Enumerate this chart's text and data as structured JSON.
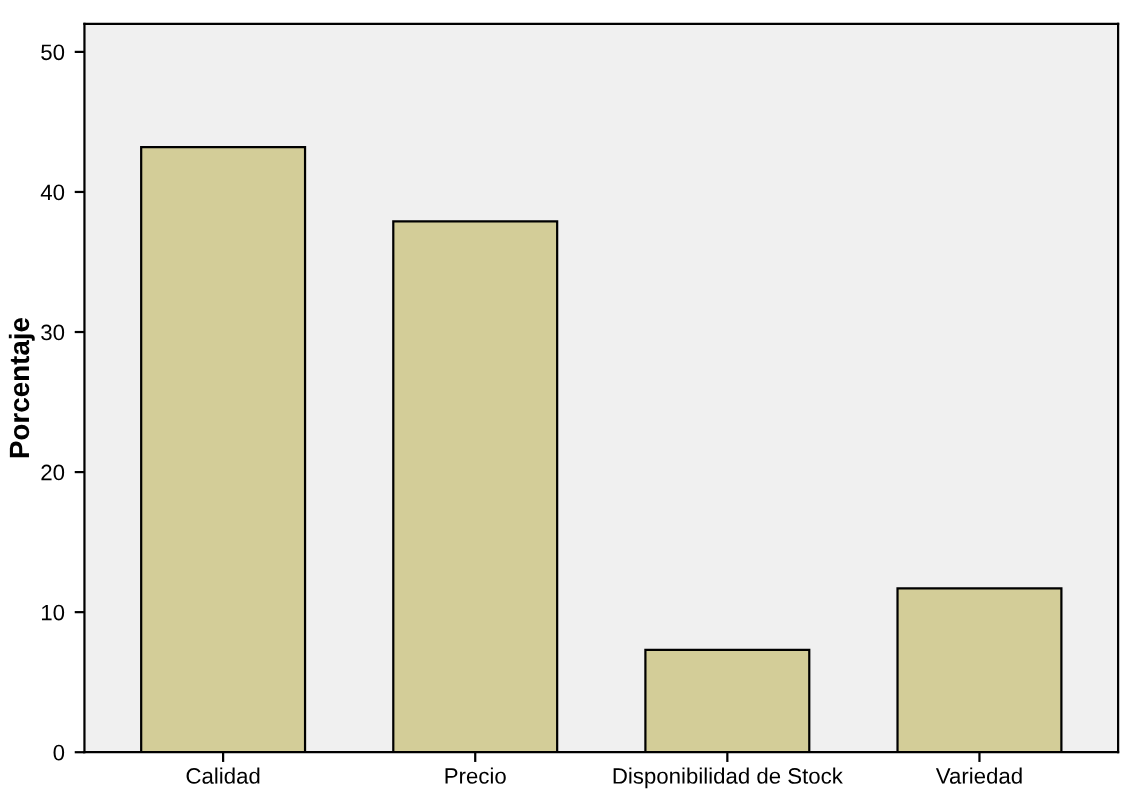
{
  "chart_data": {
    "type": "bar",
    "ylabel": "Porcentaje",
    "categories": [
      "Calidad",
      "Precio",
      "Disponibilidad de Stock",
      "Variedad"
    ],
    "values": [
      43.2,
      37.9,
      7.3,
      11.7
    ],
    "color": "#d3cd98",
    "ylim": [
      0,
      52
    ],
    "yticks": [
      0,
      10,
      20,
      30,
      40,
      50
    ],
    "grid": false
  }
}
